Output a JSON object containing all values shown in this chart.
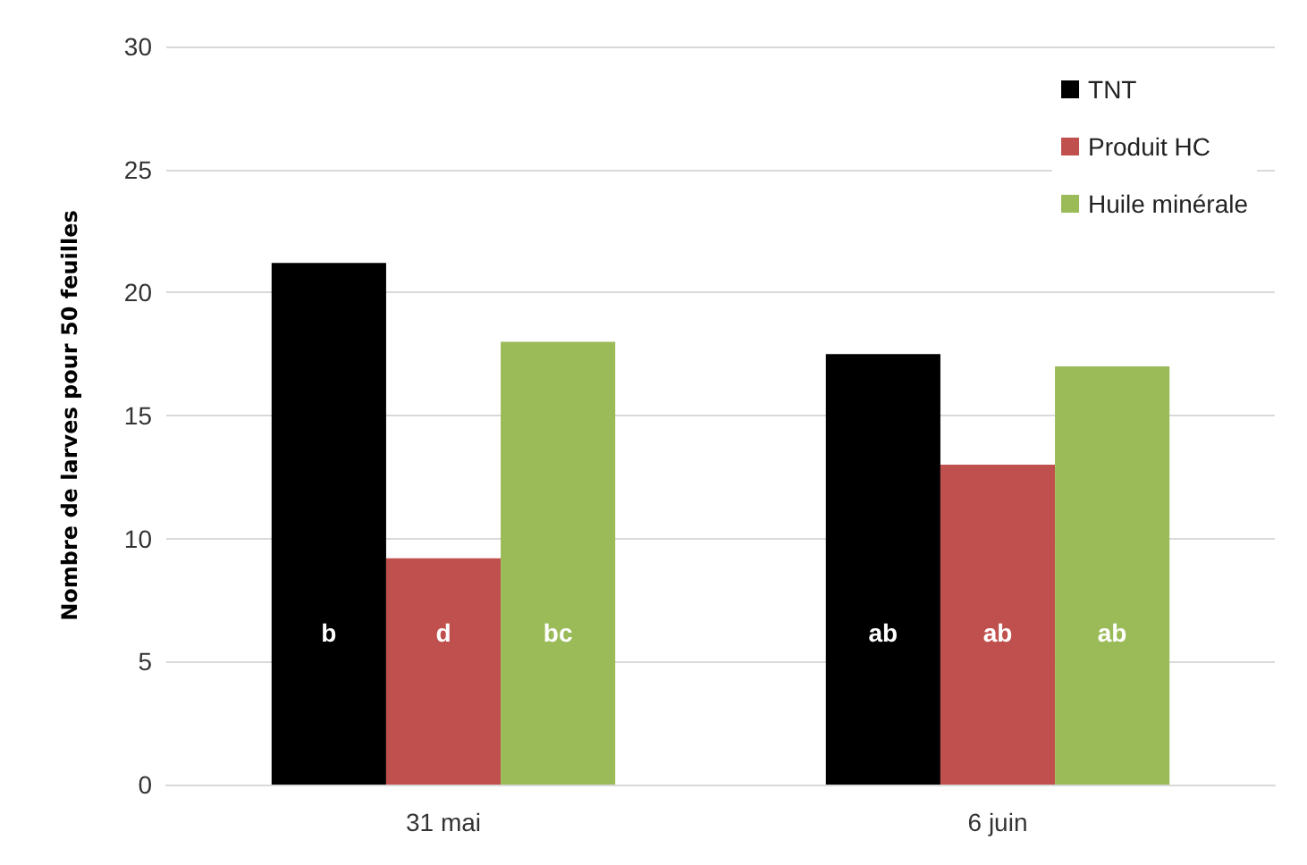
{
  "chart_data": {
    "type": "bar",
    "ylabel": "Nombre de larves pour 50 feuilles",
    "categories": [
      "31 mai",
      "6 juin"
    ],
    "series": [
      {
        "name": "TNT",
        "color": "#000000",
        "values": [
          21.2,
          17.5
        ],
        "value_labels": [
          "b",
          "ab"
        ]
      },
      {
        "name": "Produit HC",
        "color": "#c0504d",
        "values": [
          9.2,
          13.0
        ],
        "value_labels": [
          "d",
          "ab"
        ]
      },
      {
        "name": "Huile minérale",
        "color": "#9bbb59",
        "values": [
          18.0,
          17.0
        ],
        "value_labels": [
          "bc",
          "ab"
        ]
      }
    ],
    "ylim": [
      0,
      30
    ],
    "yticks": [
      0,
      5,
      10,
      15,
      20,
      25,
      30
    ],
    "grid": "y",
    "legend": "top right"
  }
}
